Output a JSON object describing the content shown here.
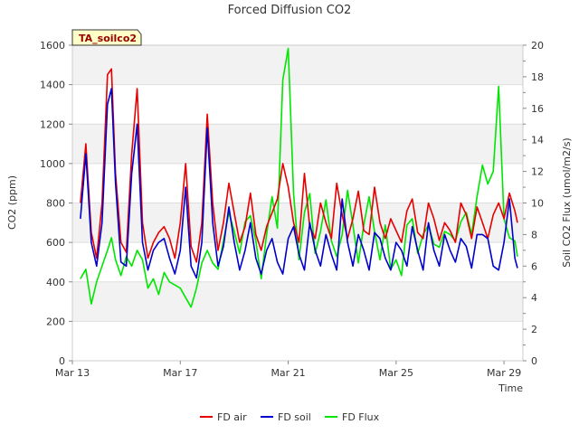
{
  "chart_data": {
    "type": "line",
    "title": "Forced Diffusion CO2",
    "badge": "TA_soilco2",
    "xlabel": "Time",
    "ylabel_left": "CO2 (ppm)",
    "ylabel_right": "Soil CO2 Flux (umol/m2/s)",
    "x_ticks": [
      "Mar 13",
      "Mar 17",
      "Mar 21",
      "Mar 25",
      "Mar 29"
    ],
    "x_tick_days": [
      13,
      17,
      21,
      25,
      29
    ],
    "xlim": [
      13,
      29.7
    ],
    "ylim_left": [
      0,
      1600
    ],
    "ylim_right": [
      0,
      20
    ],
    "y_ticks_left": [
      "0",
      "200",
      "400",
      "600",
      "800",
      "1000",
      "1200",
      "1400",
      "1600"
    ],
    "y_ticks_right": [
      "0",
      "2",
      "4",
      "6",
      "8",
      "10",
      "12",
      "14",
      "16",
      "18",
      "20"
    ],
    "grid": true,
    "legend_position": "bottom-center",
    "series": [
      {
        "name": "FD air",
        "axis": "left",
        "color": "#e60000",
        "x": [
          13.3,
          13.5,
          13.7,
          13.9,
          14.1,
          14.3,
          14.45,
          14.6,
          14.8,
          15.0,
          15.2,
          15.4,
          15.6,
          15.8,
          16.0,
          16.2,
          16.4,
          16.6,
          16.8,
          17.0,
          17.2,
          17.4,
          17.6,
          17.8,
          18.0,
          18.2,
          18.4,
          18.6,
          18.8,
          19.0,
          19.2,
          19.4,
          19.6,
          19.8,
          20.0,
          20.2,
          20.4,
          20.6,
          20.8,
          21.0,
          21.2,
          21.4,
          21.6,
          21.8,
          22.0,
          22.2,
          22.4,
          22.6,
          22.8,
          23.0,
          23.2,
          23.4,
          23.6,
          23.8,
          24.0,
          24.2,
          24.4,
          24.6,
          24.8,
          25.0,
          25.2,
          25.4,
          25.6,
          25.8,
          26.0,
          26.2,
          26.4,
          26.6,
          26.8,
          27.0,
          27.2,
          27.4,
          27.6,
          27.8,
          28.0,
          28.2,
          28.4,
          28.6,
          28.8,
          29.0,
          29.2,
          29.4,
          29.5
        ],
        "y": [
          800,
          1100,
          650,
          520,
          800,
          1450,
          1480,
          950,
          600,
          550,
          1050,
          1380,
          700,
          520,
          600,
          650,
          680,
          620,
          520,
          700,
          1000,
          580,
          500,
          700,
          1250,
          800,
          560,
          700,
          900,
          750,
          600,
          680,
          850,
          640,
          560,
          680,
          750,
          820,
          1000,
          880,
          700,
          600,
          950,
          680,
          620,
          800,
          700,
          620,
          900,
          740,
          620,
          720,
          860,
          660,
          640,
          880,
          700,
          620,
          720,
          660,
          600,
          760,
          820,
          650,
          620,
          800,
          720,
          610,
          700,
          660,
          600,
          800,
          740,
          620,
          780,
          700,
          620,
          740,
          800,
          720,
          850,
          760,
          700
        ]
      },
      {
        "name": "FD soil",
        "axis": "left",
        "color": "#0000cc",
        "x": [
          13.3,
          13.5,
          13.7,
          13.9,
          14.1,
          14.3,
          14.45,
          14.6,
          14.8,
          15.0,
          15.2,
          15.4,
          15.6,
          15.8,
          16.0,
          16.2,
          16.4,
          16.6,
          16.8,
          17.0,
          17.2,
          17.4,
          17.6,
          17.8,
          18.0,
          18.2,
          18.4,
          18.6,
          18.8,
          19.0,
          19.2,
          19.4,
          19.6,
          19.8,
          20.0,
          20.2,
          20.4,
          20.6,
          20.8,
          21.0,
          21.2,
          21.4,
          21.6,
          21.8,
          22.0,
          22.2,
          22.4,
          22.6,
          22.8,
          23.0,
          23.2,
          23.4,
          23.6,
          23.8,
          24.0,
          24.2,
          24.4,
          24.6,
          24.8,
          25.0,
          25.2,
          25.4,
          25.6,
          25.8,
          26.0,
          26.2,
          26.4,
          26.6,
          26.8,
          27.0,
          27.2,
          27.4,
          27.6,
          27.8,
          28.0,
          28.2,
          28.4,
          28.6,
          28.8,
          29.0,
          29.2,
          29.4,
          29.5
        ],
        "y": [
          720,
          1050,
          600,
          480,
          700,
          1300,
          1380,
          900,
          500,
          480,
          950,
          1200,
          600,
          460,
          560,
          600,
          620,
          520,
          440,
          560,
          880,
          480,
          420,
          600,
          1180,
          700,
          480,
          580,
          780,
          600,
          460,
          560,
          700,
          520,
          440,
          560,
          620,
          500,
          440,
          620,
          680,
          540,
          460,
          700,
          560,
          480,
          640,
          540,
          460,
          820,
          600,
          480,
          640,
          560,
          460,
          650,
          620,
          520,
          460,
          600,
          560,
          480,
          680,
          560,
          460,
          700,
          560,
          480,
          640,
          560,
          500,
          620,
          580,
          470,
          640,
          640,
          620,
          480,
          460,
          600,
          820,
          520,
          470
        ]
      },
      {
        "name": "FD Flux",
        "axis": "right",
        "color": "#00e600",
        "x": [
          13.3,
          13.5,
          13.7,
          13.9,
          14.1,
          14.3,
          14.45,
          14.6,
          14.8,
          15.0,
          15.2,
          15.4,
          15.6,
          15.8,
          16.0,
          16.2,
          16.4,
          16.6,
          16.8,
          17.0,
          17.2,
          17.4,
          17.6,
          17.8,
          18.0,
          18.2,
          18.4,
          18.6,
          18.8,
          19.0,
          19.2,
          19.4,
          19.6,
          19.8,
          20.0,
          20.2,
          20.4,
          20.6,
          20.8,
          21.0,
          21.2,
          21.4,
          21.6,
          21.8,
          22.0,
          22.2,
          22.4,
          22.6,
          22.8,
          23.0,
          23.2,
          23.4,
          23.6,
          23.8,
          24.0,
          24.2,
          24.4,
          24.6,
          24.8,
          25.0,
          25.2,
          25.4,
          25.6,
          25.8,
          26.0,
          26.2,
          26.4,
          26.6,
          26.8,
          27.0,
          27.2,
          27.4,
          27.6,
          27.8,
          28.0,
          28.2,
          28.4,
          28.6,
          28.8,
          29.0,
          29.2,
          29.4,
          29.5
        ],
        "y": [
          5.2,
          5.8,
          3.6,
          5.0,
          6.0,
          7.0,
          7.8,
          6.4,
          5.4,
          6.6,
          6.0,
          7.0,
          6.4,
          4.6,
          5.2,
          4.2,
          5.6,
          5.0,
          4.8,
          4.6,
          4.0,
          3.4,
          4.6,
          6.2,
          7.0,
          6.2,
          5.8,
          7.6,
          9.4,
          8.2,
          6.8,
          8.8,
          9.2,
          7.6,
          5.2,
          8.0,
          10.4,
          8.4,
          17.8,
          19.8,
          10.6,
          6.4,
          9.4,
          10.6,
          6.8,
          8.2,
          10.2,
          7.6,
          6.6,
          8.0,
          10.8,
          8.6,
          6.2,
          8.6,
          10.4,
          8.2,
          6.4,
          8.6,
          5.8,
          6.4,
          5.4,
          8.6,
          9.0,
          6.8,
          8.0,
          8.6,
          7.4,
          7.2,
          8.2,
          8.0,
          7.6,
          8.8,
          9.4,
          8.0,
          10.4,
          12.4,
          11.2,
          12.0,
          17.4,
          9.0,
          7.8,
          7.6,
          6.6
        ]
      }
    ]
  }
}
